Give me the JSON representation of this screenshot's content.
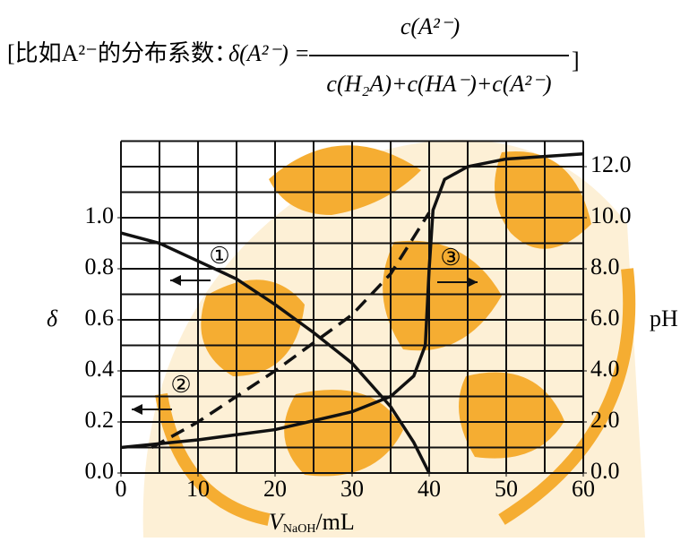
{
  "header": {
    "lead": "[比如A²⁻的分布系数：",
    "lhs": "δ(A²⁻) =",
    "numerator": "c(A²⁻)",
    "denominator": "c(H₂A)+c(HA⁻)+c(A²⁻)",
    "close": "]"
  },
  "chart_data": {
    "type": "line",
    "x_label": "V",
    "x_label_sub": "NaOH",
    "x_label_unit": "/mL",
    "y_label": "δ",
    "y2_label": "pH",
    "xlim": [
      0,
      60
    ],
    "xticks": [
      0,
      10,
      20,
      30,
      40,
      50,
      60
    ],
    "ylim": [
      0,
      1.3
    ],
    "yticks": [
      {
        "value": 0,
        "label": "0.0"
      },
      0.2,
      0.4,
      0.6,
      0.8,
      {
        "value": 1,
        "label": "1.0"
      }
    ],
    "y2lim": [
      0,
      13
    ],
    "y2ticks": [
      {
        "value": 0,
        "label": "0.0"
      },
      {
        "value": 2,
        "label": "2.0"
      },
      {
        "value": 4,
        "label": "4.0"
      },
      {
        "value": 6,
        "label": "6.0"
      },
      {
        "value": 8,
        "label": "8.0"
      },
      {
        "value": 10,
        "label": "10.0"
      },
      {
        "value": 12,
        "label": "12.0"
      }
    ],
    "grid": true,
    "x_grid": [
      0,
      5,
      10,
      15,
      20,
      25,
      30,
      35,
      40,
      45,
      50,
      55,
      60
    ],
    "y_grid": [
      0,
      0.1,
      0.2,
      0.3,
      0.4,
      0.5,
      0.6,
      0.7,
      0.8,
      0.9,
      1.0,
      1.1,
      1.2,
      1.3
    ],
    "series": [
      {
        "name": "①",
        "color": "#111111",
        "dash": false,
        "axis": "y",
        "x": [
          0,
          5,
          10,
          15,
          20,
          25,
          30,
          35,
          38,
          40
        ],
        "values": [
          0.94,
          0.9,
          0.83,
          0.76,
          0.66,
          0.55,
          0.43,
          0.26,
          0.12,
          0
        ]
      },
      {
        "name": "②",
        "color": "#111111",
        "dash": true,
        "axis": "y",
        "x": [
          4,
          10,
          15,
          20,
          25,
          30,
          35,
          40
        ],
        "values": [
          0.1,
          0.2,
          0.3,
          0.4,
          0.51,
          0.62,
          0.78,
          1.02
        ]
      },
      {
        "name": "③",
        "color": "#111111",
        "dash": false,
        "axis": "y2",
        "x": [
          0,
          10,
          20,
          30,
          35,
          38,
          39.5,
          40,
          40.5,
          42,
          45,
          50,
          60
        ],
        "values": [
          1.0,
          1.3,
          1.7,
          2.4,
          3.0,
          3.8,
          5.0,
          8.0,
          10.3,
          11.5,
          12.0,
          12.3,
          12.5
        ]
      }
    ]
  }
}
